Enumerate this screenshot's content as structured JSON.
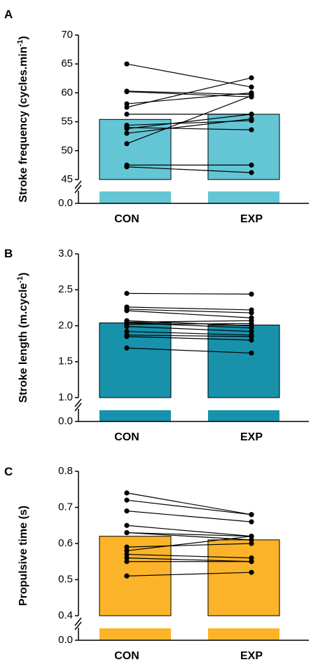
{
  "colors": {
    "panel_A_bar": "#64C6D4",
    "panel_B_bar": "#1892AB",
    "panel_C_bar": "#FBB429",
    "ink": "#000000"
  },
  "chart_data": [
    {
      "type": "bar",
      "panel_label": "A",
      "ylabel_main": "Stroke frequency (cycles.min",
      "ylabel_sup": "-1",
      "ylabel_close": ")",
      "categories": [
        "CON",
        "EXP"
      ],
      "values": [
        55.4,
        56.3
      ],
      "ylim": [
        45,
        70
      ],
      "yticks": [
        "45",
        "50",
        "55",
        "60",
        "65",
        "70"
      ],
      "broken_axis_zero_label": "0.0",
      "paired_points": [
        [
          65.0,
          61.0
        ],
        [
          60.3,
          59.7
        ],
        [
          60.2,
          59.3
        ],
        [
          58.1,
          60.0
        ],
        [
          57.5,
          62.6
        ],
        [
          56.3,
          56.3
        ],
        [
          54.4,
          55.2
        ],
        [
          54.0,
          53.6
        ],
        [
          53.8,
          56.3
        ],
        [
          53.0,
          55.5
        ],
        [
          51.2,
          59.5
        ],
        [
          47.5,
          47.5
        ],
        [
          47.2,
          46.2
        ]
      ]
    },
    {
      "type": "bar",
      "panel_label": "B",
      "ylabel_main": "Stroke length (m.cycle",
      "ylabel_sup": "-1",
      "ylabel_close": ")",
      "categories": [
        "CON",
        "EXP"
      ],
      "values": [
        2.04,
        2.01
      ],
      "ylim": [
        1.0,
        3.0
      ],
      "yticks": [
        "1.0",
        "1.5",
        "2.0",
        "2.5",
        "3.0"
      ],
      "broken_axis_zero_label": "0.0",
      "paired_points": [
        [
          2.45,
          2.44
        ],
        [
          2.26,
          2.22
        ],
        [
          2.23,
          2.18
        ],
        [
          2.21,
          2.11
        ],
        [
          2.07,
          2.0
        ],
        [
          2.05,
          2.07
        ],
        [
          2.04,
          1.97
        ],
        [
          2.02,
          2.03
        ],
        [
          1.99,
          1.92
        ],
        [
          1.92,
          1.87
        ],
        [
          1.87,
          1.85
        ],
        [
          1.85,
          1.8
        ],
        [
          1.69,
          1.62
        ]
      ]
    },
    {
      "type": "bar",
      "panel_label": "C",
      "ylabel_main": "Propulsive time (s)",
      "ylabel_sup": "",
      "ylabel_close": "",
      "categories": [
        "CON",
        "EXP"
      ],
      "values": [
        0.62,
        0.61
      ],
      "ylim": [
        0.4,
        0.8
      ],
      "yticks": [
        "0.4",
        "0.5",
        "0.6",
        "0.7",
        "0.8"
      ],
      "broken_axis_zero_label": "0.0",
      "paired_points": [
        [
          0.74,
          0.68
        ],
        [
          0.72,
          0.68
        ],
        [
          0.69,
          0.66
        ],
        [
          0.65,
          0.62
        ],
        [
          0.63,
          0.62
        ],
        [
          0.63,
          0.61
        ],
        [
          0.59,
          0.6
        ],
        [
          0.58,
          0.62
        ],
        [
          0.57,
          0.56
        ],
        [
          0.56,
          0.55
        ],
        [
          0.55,
          0.55
        ],
        [
          0.51,
          0.52
        ]
      ]
    }
  ]
}
